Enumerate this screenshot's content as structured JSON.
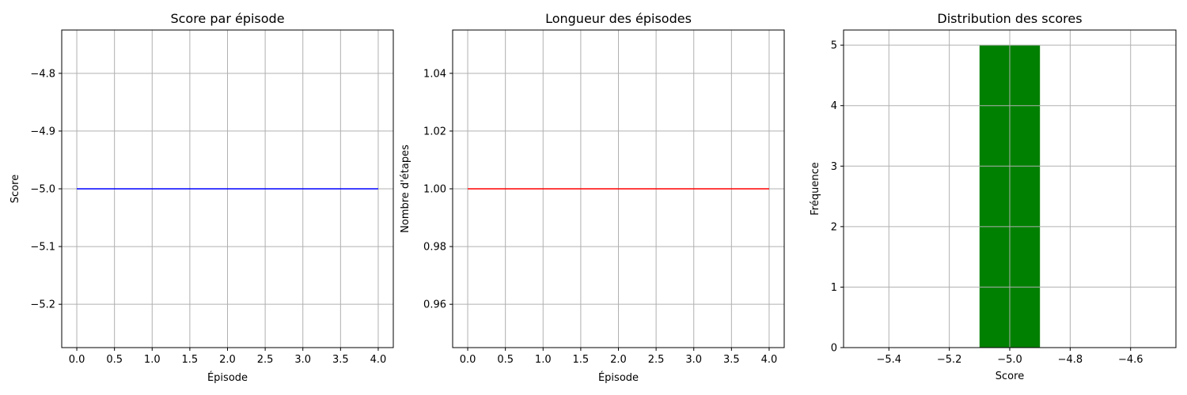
{
  "chart_data": [
    {
      "type": "line",
      "title": "Score par épisode",
      "xlabel": "Épisode",
      "ylabel": "Score",
      "grid": true,
      "x": [
        0,
        1,
        2,
        3,
        4
      ],
      "series": [
        {
          "values": [
            -5,
            -5,
            -5,
            -5,
            -5
          ],
          "color": "#0000ff"
        }
      ],
      "xlim": [
        -0.2,
        4.2
      ],
      "ylim": [
        -5.275,
        -4.725
      ],
      "xticks": [
        0,
        0.5,
        1,
        1.5,
        2,
        2.5,
        3,
        3.5,
        4
      ],
      "xtick_labels": [
        "0.0",
        "0.5",
        "1.0",
        "1.5",
        "2.0",
        "2.5",
        "3.0",
        "3.5",
        "4.0"
      ],
      "yticks": [
        -5.2,
        -5.1,
        -5.0,
        -4.9,
        -4.8
      ],
      "ytick_labels": [
        "−5.2",
        "−5.1",
        "−5.0",
        "−4.9",
        "−4.8"
      ]
    },
    {
      "type": "line",
      "title": "Longueur des épisodes",
      "xlabel": "Épisode",
      "ylabel": "Nombre d'étapes",
      "grid": true,
      "x": [
        0,
        1,
        2,
        3,
        4
      ],
      "series": [
        {
          "values": [
            1,
            1,
            1,
            1,
            1
          ],
          "color": "#ff0000"
        }
      ],
      "xlim": [
        -0.2,
        4.2
      ],
      "ylim": [
        0.945,
        1.055
      ],
      "xticks": [
        0,
        0.5,
        1,
        1.5,
        2,
        2.5,
        3,
        3.5,
        4
      ],
      "xtick_labels": [
        "0.0",
        "0.5",
        "1.0",
        "1.5",
        "2.0",
        "2.5",
        "3.0",
        "3.5",
        "4.0"
      ],
      "yticks": [
        0.96,
        0.98,
        1.0,
        1.02,
        1.04
      ],
      "ytick_labels": [
        "0.96",
        "0.98",
        "1.00",
        "1.02",
        "1.04"
      ]
    },
    {
      "type": "bar",
      "title": "Distribution des scores",
      "xlabel": "Score",
      "ylabel": "Fréquence",
      "grid": true,
      "bins": [
        {
          "left": -5.1,
          "right": -4.9,
          "count": 5,
          "color": "#008000"
        }
      ],
      "xlim": [
        -5.55,
        -4.45
      ],
      "ylim": [
        0,
        5.25
      ],
      "xticks": [
        -5.4,
        -5.2,
        -5.0,
        -4.8,
        -4.6
      ],
      "xtick_labels": [
        "−5.4",
        "−5.2",
        "−5.0",
        "−4.8",
        "−4.6"
      ],
      "yticks": [
        0,
        1,
        2,
        3,
        4,
        5
      ],
      "ytick_labels": [
        "0",
        "1",
        "2",
        "3",
        "4",
        "5"
      ]
    }
  ]
}
